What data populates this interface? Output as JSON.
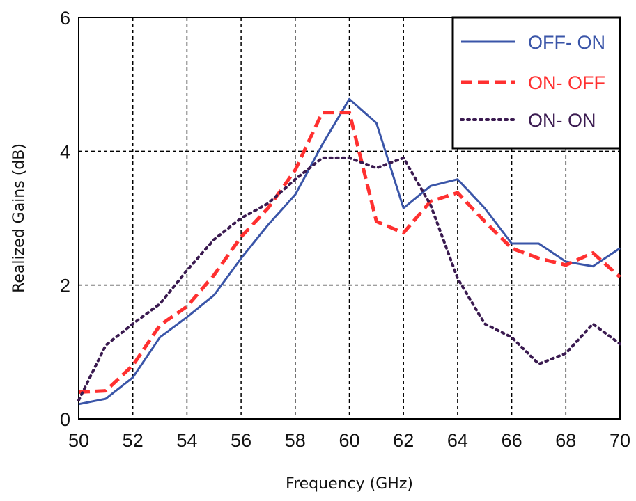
{
  "chart_data": {
    "type": "line",
    "xlabel": "Frequency (GHz)",
    "ylabel": "Realized Gains (dB)",
    "xlim": [
      50,
      70
    ],
    "ylim": [
      0,
      6
    ],
    "xticks": [
      "50",
      "52",
      "54",
      "56",
      "58",
      "60",
      "62",
      "64",
      "66",
      "68",
      "70"
    ],
    "yticks": [
      "0",
      "2",
      "4",
      "6"
    ],
    "grid": "dashed",
    "legend_position": "top-right",
    "series": [
      {
        "name": "OFF- ON",
        "color": "#3a55a8",
        "style": "solid",
        "x": [
          50,
          51,
          52,
          53,
          54,
          55,
          56,
          57,
          58,
          59,
          60,
          61,
          62,
          63,
          64,
          65,
          66,
          67,
          68,
          69,
          70
        ],
        "y": [
          0.22,
          0.3,
          0.62,
          1.22,
          1.52,
          1.85,
          2.4,
          2.9,
          3.35,
          4.1,
          4.78,
          4.42,
          3.15,
          3.48,
          3.58,
          3.15,
          2.62,
          2.62,
          2.35,
          2.28,
          2.55
        ]
      },
      {
        "name": "ON- OFF",
        "color": "#ff3030",
        "style": "dashed",
        "x": [
          50,
          51,
          52,
          53,
          54,
          55,
          56,
          57,
          58,
          59,
          60,
          61,
          62,
          63,
          64,
          65,
          66,
          67,
          68,
          69,
          70
        ],
        "y": [
          0.4,
          0.42,
          0.8,
          1.4,
          1.68,
          2.15,
          2.72,
          3.15,
          3.72,
          4.58,
          4.58,
          2.95,
          2.78,
          3.25,
          3.38,
          2.95,
          2.55,
          2.4,
          2.3,
          2.48,
          2.12
        ]
      },
      {
        "name": "ON- ON",
        "color": "#3a1a50",
        "style": "dotted",
        "x": [
          50,
          51,
          52,
          53,
          54,
          55,
          56,
          57,
          58,
          59,
          60,
          61,
          62,
          63,
          64,
          65,
          66,
          67,
          68,
          69,
          70
        ],
        "y": [
          0.28,
          1.1,
          1.42,
          1.72,
          2.22,
          2.68,
          3.0,
          3.22,
          3.58,
          3.9,
          3.9,
          3.75,
          3.9,
          3.2,
          2.1,
          1.42,
          1.22,
          0.82,
          0.98,
          1.42,
          1.12
        ]
      }
    ]
  }
}
